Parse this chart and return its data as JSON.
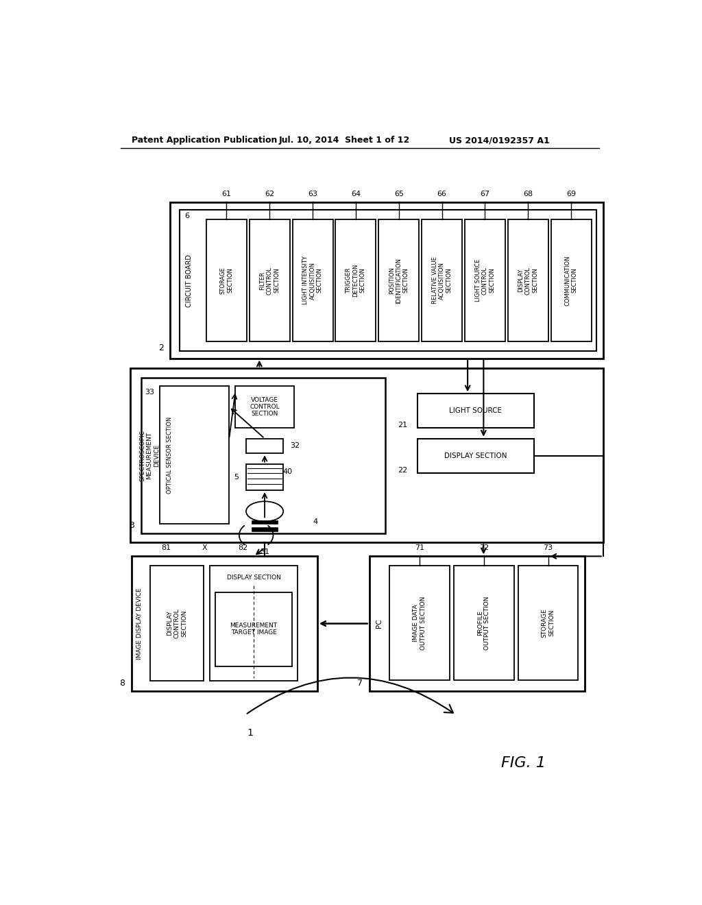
{
  "title_left": "Patent Application Publication",
  "title_mid": "Jul. 10, 2014  Sheet 1 of 12",
  "title_right": "US 2014/0192357 A1",
  "fig_label": "FIG. 1",
  "bg_color": "#ffffff",
  "line_color": "#000000",
  "font_color": "#000000",
  "cb_boxes": [
    [
      "STORAGE\nSECTION",
      "61"
    ],
    [
      "FILTER\nCONTROL\nSECTION",
      "62"
    ],
    [
      "LIGHT INTENSITY\nACQUISITION\nSECTION",
      "63"
    ],
    [
      "TRIGGER\nDETECTION\nSECTION",
      "64"
    ],
    [
      "POSITION\nIDENTIFICATION\nSECTION",
      "65"
    ],
    [
      "RELATIVE VALUE\nACQUISITION\nSECTION",
      "66"
    ],
    [
      "LIGHT SOURCE\nCONTROL\nSECTION",
      "67"
    ],
    [
      "DISPLAY\nCONTROL\nSECTION",
      "68"
    ],
    [
      "COMMUNICATION\nSECTION",
      "69"
    ]
  ]
}
